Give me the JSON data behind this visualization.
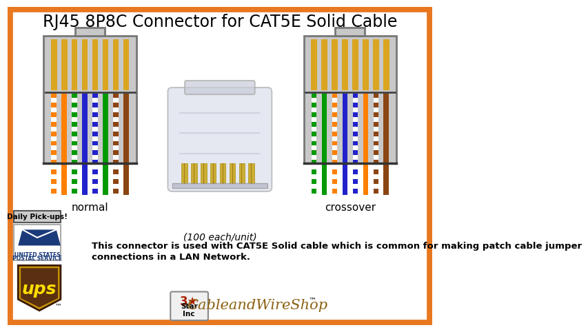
{
  "title": "RJ45 8P8C Connector for CAT5E Solid Cable",
  "title_fontsize": 17,
  "bg_color": "#FFFFFF",
  "border_color": "#E87820",
  "normal_label": "normal",
  "crossover_label": "crossover",
  "caption_line1": "(100 each/unit)",
  "caption_line2": "This connector is used with CAT5E Solid cable which is common for making patch cable jumper",
  "caption_line3": "connections in a LAN Network.",
  "connector_bg": "#C8C8C8",
  "connector_border": "#777777",
  "pin_color": "#DAA520",
  "normal_wires": [
    {
      "stripe": true,
      "color": "#FF8000"
    },
    {
      "stripe": false,
      "color": "#FF8000"
    },
    {
      "stripe": true,
      "color": "#009900"
    },
    {
      "stripe": false,
      "color": "#2222CC"
    },
    {
      "stripe": true,
      "color": "#2222CC"
    },
    {
      "stripe": false,
      "color": "#009900"
    },
    {
      "stripe": true,
      "color": "#8B4513"
    },
    {
      "stripe": false,
      "color": "#8B4513"
    }
  ],
  "crossover_wires": [
    {
      "stripe": true,
      "color": "#009900"
    },
    {
      "stripe": false,
      "color": "#009900"
    },
    {
      "stripe": true,
      "color": "#FF8000"
    },
    {
      "stripe": false,
      "color": "#2222CC"
    },
    {
      "stripe": true,
      "color": "#2222CC"
    },
    {
      "stripe": false,
      "color": "#FF8000"
    },
    {
      "stripe": true,
      "color": "#8B4513"
    },
    {
      "stripe": false,
      "color": "#8B4513"
    }
  ],
  "daily_pickups_text": "Daily Pick-ups!",
  "usps_blue": "#1A3A7A",
  "ups_gold": "#C8950A",
  "ups_brown": "#5A3010",
  "ups_text": "#FFDD00"
}
